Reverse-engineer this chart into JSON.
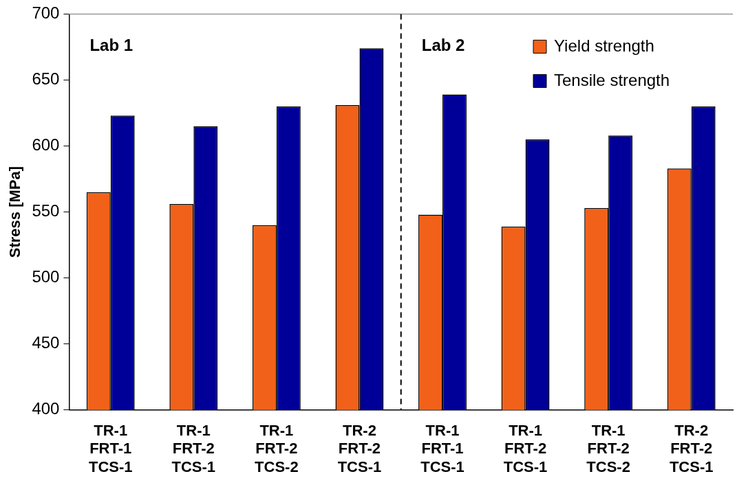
{
  "chart_data": {
    "type": "bar",
    "ylabel": "Stress [MPa]",
    "categories": [
      "TR-1 FRT-1 TCS-1",
      "TR-1 FRT-2 TCS-1",
      "TR-1 FRT-2 TCS-2",
      "TR-2 FRT-2 TCS-1",
      "TR-1 FRT-1 TCS-1",
      "TR-1 FRT-2 TCS-1",
      "TR-1 FRT-2 TCS-2",
      "TR-2 FRT-2 TCS-1"
    ],
    "series": [
      {
        "name": "Yield strength",
        "color": "#f26119",
        "values": [
          565,
          556,
          540,
          631,
          548,
          539,
          553,
          583
        ]
      },
      {
        "name": "Tensile strength",
        "color": "#000099",
        "values": [
          623,
          615,
          630,
          674,
          639,
          605,
          608,
          630
        ]
      }
    ],
    "ylim": [
      400,
      700
    ],
    "yticks": [
      400,
      450,
      500,
      550,
      600,
      650,
      700
    ],
    "annotations": [
      "Lab 1",
      "Lab 2"
    ],
    "legend": "top right",
    "grid": false
  }
}
